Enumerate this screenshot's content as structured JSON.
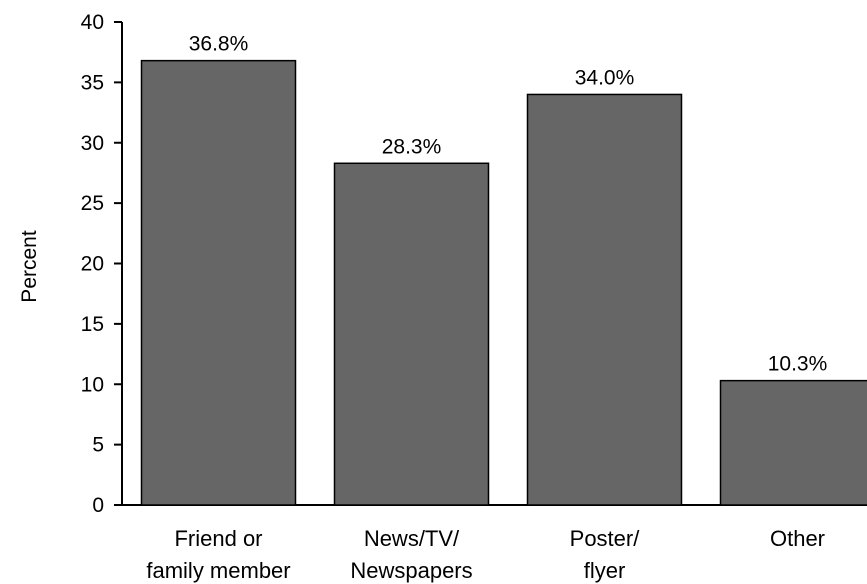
{
  "chart_data": {
    "type": "bar",
    "categories": [
      [
        "Friend or",
        "family member"
      ],
      [
        "News/TV/",
        "Newspapers"
      ],
      [
        "Poster/",
        "flyer"
      ],
      [
        "Other"
      ]
    ],
    "values": [
      36.8,
      28.3,
      34.0,
      10.3
    ],
    "data_labels": [
      "36.8%",
      "28.3%",
      "34.0%",
      "10.3%"
    ],
    "title": "",
    "xlabel": "",
    "ylabel": "Percent",
    "ylim": [
      0,
      40
    ],
    "yticks": [
      0,
      5,
      10,
      15,
      20,
      25,
      30,
      35,
      40
    ],
    "ytick_labels": [
      "0",
      "5",
      "10",
      "15",
      "20",
      "25",
      "30",
      "35",
      "40"
    ],
    "grid": false,
    "legend": "none",
    "colors": {
      "bar_fill": "#666666",
      "bar_stroke": "#000000",
      "axis": "#000000"
    }
  }
}
